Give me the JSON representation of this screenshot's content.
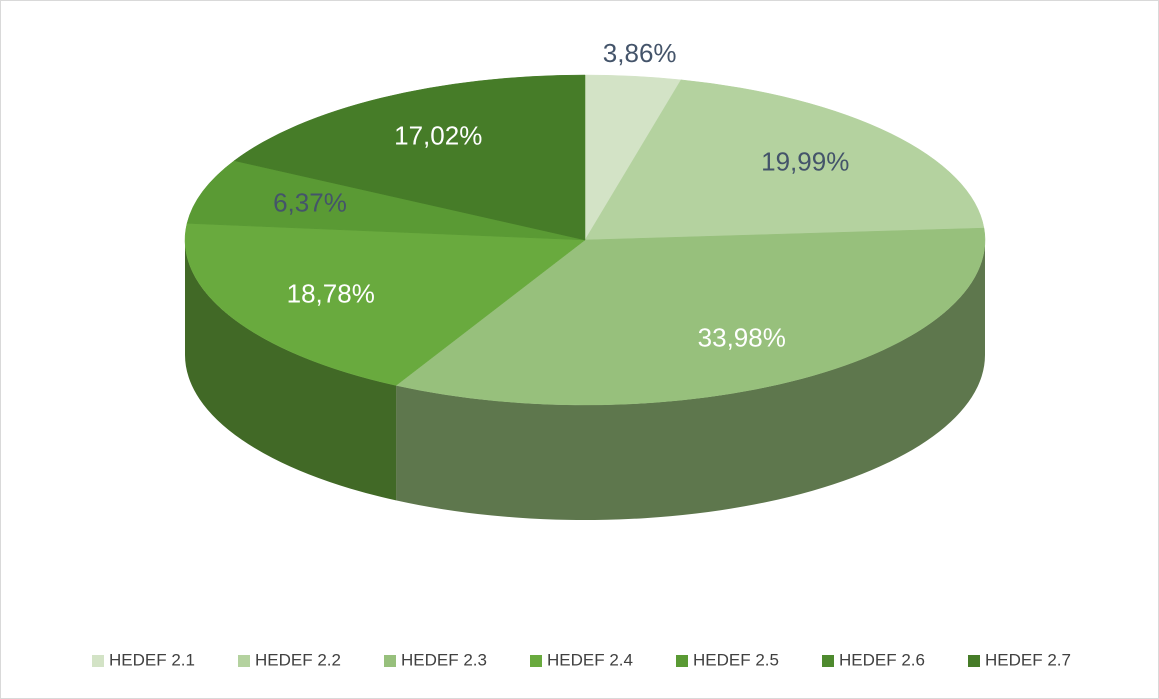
{
  "chart_data": {
    "type": "pie3d",
    "categories": [
      "HEDEF 2.1",
      "HEDEF 2.2",
      "HEDEF 2.3",
      "HEDEF 2.4",
      "HEDEF 2.5",
      "HEDEF 2.6",
      "HEDEF 2.7"
    ],
    "values": [
      3.86,
      19.99,
      33.98,
      18.78,
      6.37,
      0,
      17.02
    ],
    "value_labels": [
      "3,86%",
      "19,99%",
      "33,98%",
      "18,78%",
      "6,37%",
      null,
      "17,02%"
    ],
    "colors": [
      "#d3e3c6",
      "#b4d29f",
      "#97c07c",
      "#69aa3e",
      "#5a9a34",
      "#4e8a2e",
      "#467c28"
    ],
    "label_colors": [
      "#44546a",
      "#44546a",
      "#ffffff",
      "#ffffff",
      "#44546a",
      "#ffffff",
      "#ffffff"
    ],
    "legend": "bottom"
  }
}
